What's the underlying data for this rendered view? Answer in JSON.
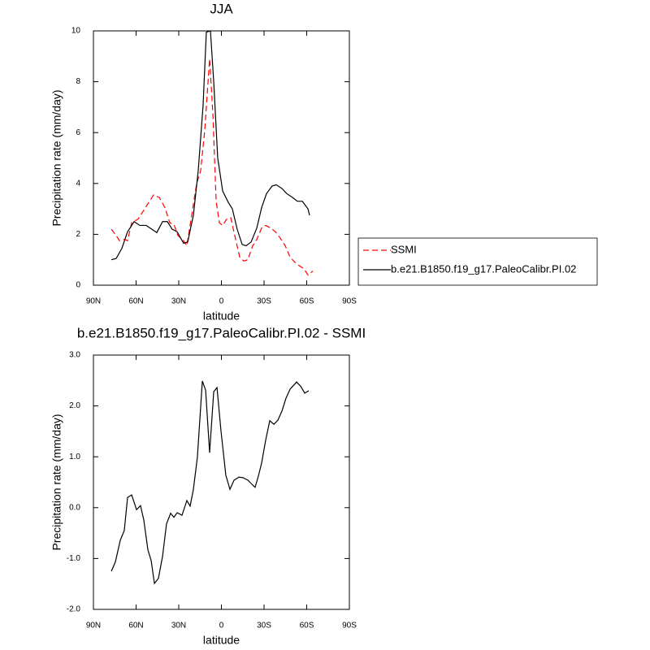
{
  "chart_data": [
    {
      "type": "line",
      "title": "JJA",
      "x_label": "latitude",
      "y_label": "Precipitation rate (mm/day)",
      "xlim": [
        90,
        -90
      ],
      "xticks": [
        {
          "value": 90,
          "label": "90N"
        },
        {
          "value": 60,
          "label": "60N"
        },
        {
          "value": 30,
          "label": "30N"
        },
        0,
        {
          "value": -30,
          "label": "30S"
        },
        {
          "value": -60,
          "label": "60S"
        },
        {
          "value": -90,
          "label": "90S"
        }
      ],
      "ylim": [
        0,
        10
      ],
      "yticks": [
        0,
        2,
        4,
        6,
        8,
        10
      ],
      "legend": "right",
      "series": [
        {
          "name": "SSMI",
          "color": "#ff0000",
          "dashed": true,
          "x": [
            77.4,
            74,
            71.7,
            68.3,
            66,
            63.1,
            58.6,
            55.7,
            52.3,
            47.7,
            43.7,
            39.7,
            36.3,
            33.4,
            30.6,
            26.6,
            24.3,
            20.9,
            17.4,
            14.6,
            11.7,
            8.3,
            6,
            3.7,
            1.4,
            -0.9,
            -3.7,
            -6.6,
            -10,
            -12.9,
            -15.7,
            -18.6,
            -22,
            -24.9,
            -28.3,
            -31.1,
            -34.6,
            -38,
            -41.4,
            -44.9,
            -48.3,
            -51.7,
            -55.1,
            -58,
            -60.9,
            -64.3
          ],
          "values": [
            2.2,
            1.95,
            1.75,
            1.8,
            1.75,
            2.45,
            2.6,
            2.85,
            3.15,
            3.55,
            3.45,
            3.05,
            2.45,
            2.4,
            1.95,
            1.75,
            1.55,
            2.75,
            4.0,
            4.5,
            6.1,
            8.9,
            6.75,
            3.3,
            2.45,
            2.35,
            2.6,
            2.65,
            1.8,
            1.1,
            0.95,
            1.0,
            1.55,
            1.8,
            2.25,
            2.35,
            2.25,
            2.1,
            1.85,
            1.55,
            1.1,
            0.9,
            0.75,
            0.65,
            0.4,
            0.55
          ]
        },
        {
          "name": "b.e21.B1850.f19_g17.PaleoCalibr.PI.02",
          "color": "#000000",
          "dashed": false,
          "x": [
            77.4,
            74,
            70,
            66,
            61.4,
            57.4,
            52.9,
            48.9,
            45.4,
            41.4,
            38,
            34.6,
            31.1,
            26.6,
            23.7,
            19.7,
            16.3,
            12.9,
            10.6,
            7.7,
            5.4,
            2.6,
            -0.9,
            -4.9,
            -7.7,
            -11.1,
            -14.6,
            -17.4,
            -20.9,
            -24.9,
            -28.3,
            -31.7,
            -35.7,
            -38.6,
            -42.6,
            -46,
            -50,
            -53.4,
            -56.9,
            -60.9,
            -62
          ],
          "values": [
            1.0,
            1.05,
            1.45,
            2.1,
            2.5,
            2.35,
            2.35,
            2.2,
            2.07,
            2.5,
            2.5,
            2.2,
            2.1,
            1.65,
            1.7,
            2.75,
            4.5,
            7.05,
            9.95,
            10.0,
            8.0,
            5.0,
            3.7,
            3.25,
            3.0,
            2.2,
            1.6,
            1.55,
            1.7,
            2.25,
            3.05,
            3.6,
            3.9,
            3.95,
            3.8,
            3.6,
            3.45,
            3.3,
            3.3,
            3.0,
            2.75
          ]
        }
      ]
    },
    {
      "type": "line",
      "title": "b.e21.B1850.f19_g17.PaleoCalibr.PI.02 - SSMI",
      "x_label": "latitude",
      "y_label": "Precipitation rate (mm/day)",
      "xlim": [
        90,
        -90
      ],
      "xticks": [
        {
          "value": 90,
          "label": "90N"
        },
        {
          "value": 60,
          "label": "60N"
        },
        {
          "value": 30,
          "label": "30N"
        },
        0,
        {
          "value": -30,
          "label": "30S"
        },
        {
          "value": -60,
          "label": "60S"
        },
        {
          "value": -90,
          "label": "90S"
        }
      ],
      "ylim": [
        -2,
        3
      ],
      "yticks": [
        {
          "value": -2,
          "label": "-2.0"
        },
        {
          "value": -1,
          "label": "-1.0"
        },
        {
          "value": 0,
          "label": "0.0"
        },
        {
          "value": 1,
          "label": "1.0"
        },
        {
          "value": 2,
          "label": "2.0"
        },
        {
          "value": 3,
          "label": "3.0"
        }
      ],
      "series": [
        {
          "color": "#000000",
          "dashed": false,
          "x": [
            77.4,
            74.6,
            71.1,
            68.3,
            66,
            63.1,
            59.7,
            56.9,
            54.6,
            51.7,
            49.4,
            47.1,
            44.3,
            41.4,
            38.6,
            35.7,
            33.4,
            31.1,
            27.7,
            24.3,
            22,
            19.7,
            16.9,
            13.4,
            11.1,
            8.3,
            5.4,
            3.1,
            0.3,
            -3.1,
            -6,
            -8.9,
            -12.3,
            -15.1,
            -18.6,
            -21.4,
            -23.7,
            -26,
            -28.3,
            -31.1,
            -34,
            -36.9,
            -39.7,
            -42.6,
            -45.4,
            -48.3,
            -52.9,
            -55.7,
            -58.6,
            -61.4
          ],
          "values": [
            -1.25,
            -1.07,
            -0.64,
            -0.45,
            0.2,
            0.25,
            -0.04,
            0.04,
            -0.24,
            -0.83,
            -1.04,
            -1.49,
            -1.39,
            -0.96,
            -0.32,
            -0.11,
            -0.19,
            -0.1,
            -0.15,
            0.14,
            0.03,
            0.36,
            0.99,
            2.49,
            2.31,
            1.08,
            2.28,
            2.36,
            1.51,
            0.64,
            0.36,
            0.54,
            0.6,
            0.59,
            0.54,
            0.46,
            0.4,
            0.62,
            0.88,
            1.32,
            1.71,
            1.64,
            1.72,
            1.9,
            2.15,
            2.33,
            2.47,
            2.39,
            2.25,
            2.3
          ]
        }
      ]
    }
  ]
}
